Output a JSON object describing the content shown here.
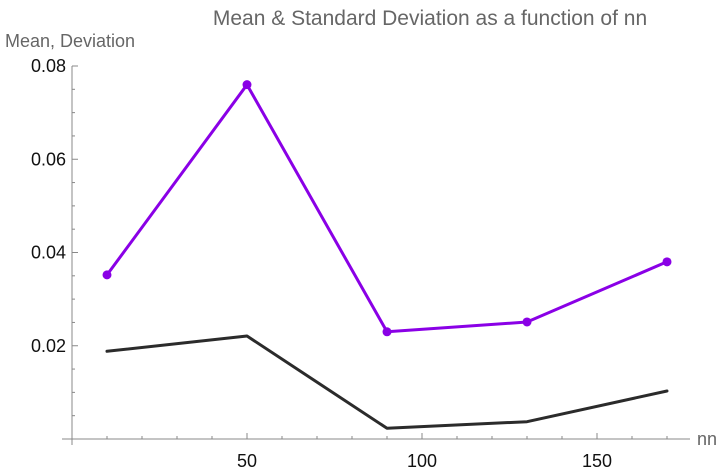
{
  "chart_data": {
    "type": "line",
    "title": "Mean & Standard Deviation as a function of nn",
    "xlabel": "nn",
    "ylabel": "Mean, Deviation",
    "xlim": [
      0,
      180
    ],
    "ylim": [
      0,
      0.08
    ],
    "x_ticks": [
      50,
      100,
      150
    ],
    "x_tick_labels": [
      "50",
      "100",
      "150"
    ],
    "y_ticks": [
      0.02,
      0.04,
      0.06,
      0.08
    ],
    "y_tick_labels": [
      "0.02",
      "0.04",
      "0.06",
      "0.08"
    ],
    "grid": false,
    "series": [
      {
        "color": "#8a00e6",
        "markers": true,
        "x": [
          10,
          50,
          90,
          130,
          170
        ],
        "values": [
          0.0352,
          0.076,
          0.023,
          0.0251,
          0.038
        ]
      },
      {
        "color": "#2b2b2b",
        "markers": false,
        "x": [
          10,
          50,
          90,
          130,
          170
        ],
        "values": [
          0.0188,
          0.0221,
          0.0023,
          0.0037,
          0.0103
        ]
      }
    ]
  }
}
